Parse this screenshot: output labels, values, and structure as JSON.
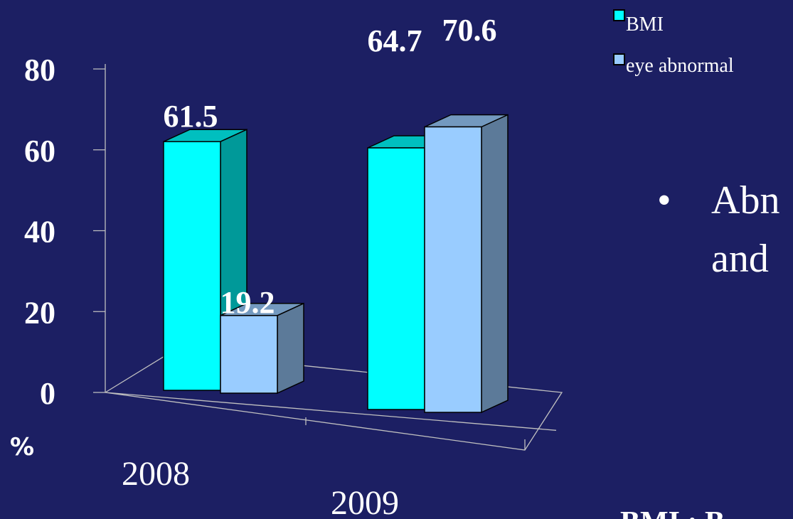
{
  "slide": {
    "bullet": "•",
    "body_line1": "Abn",
    "body_line2": "and",
    "footer": "BMI : B"
  },
  "colors": {
    "background": "#1c1f63",
    "bmi": "#00ffff",
    "eye_abnormal": "#99ccff",
    "axis": "#c0c0c0"
  },
  "chart_data": {
    "type": "bar",
    "three_d": true,
    "categories": [
      "2008",
      "2009"
    ],
    "series": [
      {
        "name": "BMI",
        "values": [
          61.5,
          64.7
        ]
      },
      {
        "name": "eye abnormal",
        "values": [
          19.2,
          70.6
        ]
      }
    ],
    "data_labels": [
      [
        "61.5",
        "64.7"
      ],
      [
        "19.2",
        "70.6"
      ]
    ],
    "yticks": [
      "0",
      "20",
      "40",
      "60",
      "80"
    ],
    "ylim": [
      0,
      80
    ],
    "ylabel": "%",
    "grid": false,
    "legend_position": "top-right"
  }
}
